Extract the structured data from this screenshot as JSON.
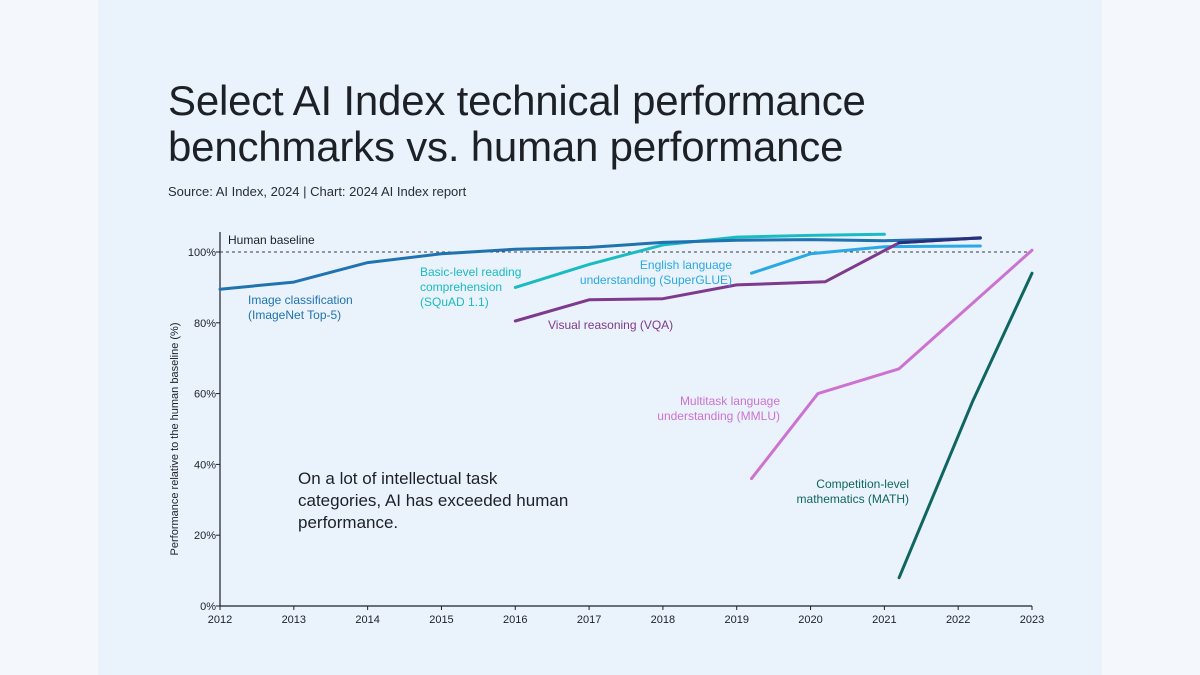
{
  "header": {
    "title_line1": "Select AI Index technical performance",
    "title_line2": "benchmarks vs. human performance",
    "source": "Source: AI Index, 2024 | Chart: 2024 AI Index report"
  },
  "annotation": "On a lot of intellectual task categories, AI has exceeded human performance.",
  "colors": {
    "background": "#eaf2fb",
    "imagenet": "#1f73b0",
    "squad": "#19bcc2",
    "superglue": "#2aa9e6",
    "vqa": "#7e3a8c",
    "mmlu": "#cc73d1",
    "math": "#0f6661",
    "superglue_end": "#27307a"
  },
  "chart_data": {
    "type": "line",
    "title": "",
    "xlabel": "",
    "ylabel": "Performance relative to the human baseline (%)",
    "xlim": [
      2012,
      2023
    ],
    "ylim": [
      0,
      100
    ],
    "x_ticks": [
      2012,
      2013,
      2014,
      2015,
      2016,
      2017,
      2018,
      2019,
      2020,
      2021,
      2022,
      2023
    ],
    "y_ticks": [
      0,
      20,
      40,
      60,
      80,
      100
    ],
    "y_tick_labels": [
      "0%",
      "20%",
      "40%",
      "60%",
      "80%",
      "100%"
    ],
    "baseline": {
      "value": 100,
      "label": "Human baseline"
    },
    "grid": false,
    "series": [
      {
        "key": "imagenet",
        "name": "Image classification (ImageNet Top-5)",
        "label_lines": [
          "Image classification",
          "(ImageNet Top-5)"
        ],
        "x": [
          2012,
          2013,
          2014,
          2015,
          2016,
          2017,
          2018,
          2019,
          2020,
          2021,
          2022.3
        ],
        "y": [
          89.5,
          91.5,
          97,
          99.5,
          100.8,
          101.3,
          102.7,
          103.3,
          103.5,
          103.2,
          103.9
        ]
      },
      {
        "key": "squad",
        "name": "Basic-level reading comprehension (SQuAD 1.1)",
        "label_lines": [
          "Basic-level reading",
          "comprehension",
          "(SQuAD 1.1)"
        ],
        "x": [
          2016,
          2017,
          2018,
          2019,
          2020,
          2021
        ],
        "y": [
          90,
          96.5,
          102,
          104.2,
          104.7,
          105
        ]
      },
      {
        "key": "superglue",
        "name": "English language understanding (SuperGLUE)",
        "label_lines": [
          "English language",
          "understanding (SuperGLUE)"
        ],
        "x": [
          2019.2,
          2020,
          2021,
          2022.3
        ],
        "y": [
          94,
          99.5,
          101.5,
          101.7
        ]
      },
      {
        "key": "vqa",
        "name": "Visual reasoning (VQA)",
        "label_lines": [
          "Visual reasoning (VQA)"
        ],
        "x": [
          2016,
          2017,
          2018,
          2019,
          2020.2,
          2021.2,
          2022.3
        ],
        "y": [
          80.5,
          86.5,
          86.8,
          90.7,
          91.6,
          102.6,
          104
        ]
      },
      {
        "key": "mmlu",
        "name": "Multitask language understanding (MMLU)",
        "label_lines": [
          "Multitask language",
          "understanding (MMLU)"
        ],
        "x": [
          2019.2,
          2020.1,
          2021.2,
          2023
        ],
        "y": [
          36,
          60,
          67,
          100.5
        ]
      },
      {
        "key": "math",
        "name": "Competition-level mathematics (MATH)",
        "label_lines": [
          "Competition-level",
          "mathematics (MATH)"
        ],
        "x": [
          2021.2,
          2022.2,
          2023
        ],
        "y": [
          8,
          58,
          94
        ]
      }
    ]
  }
}
